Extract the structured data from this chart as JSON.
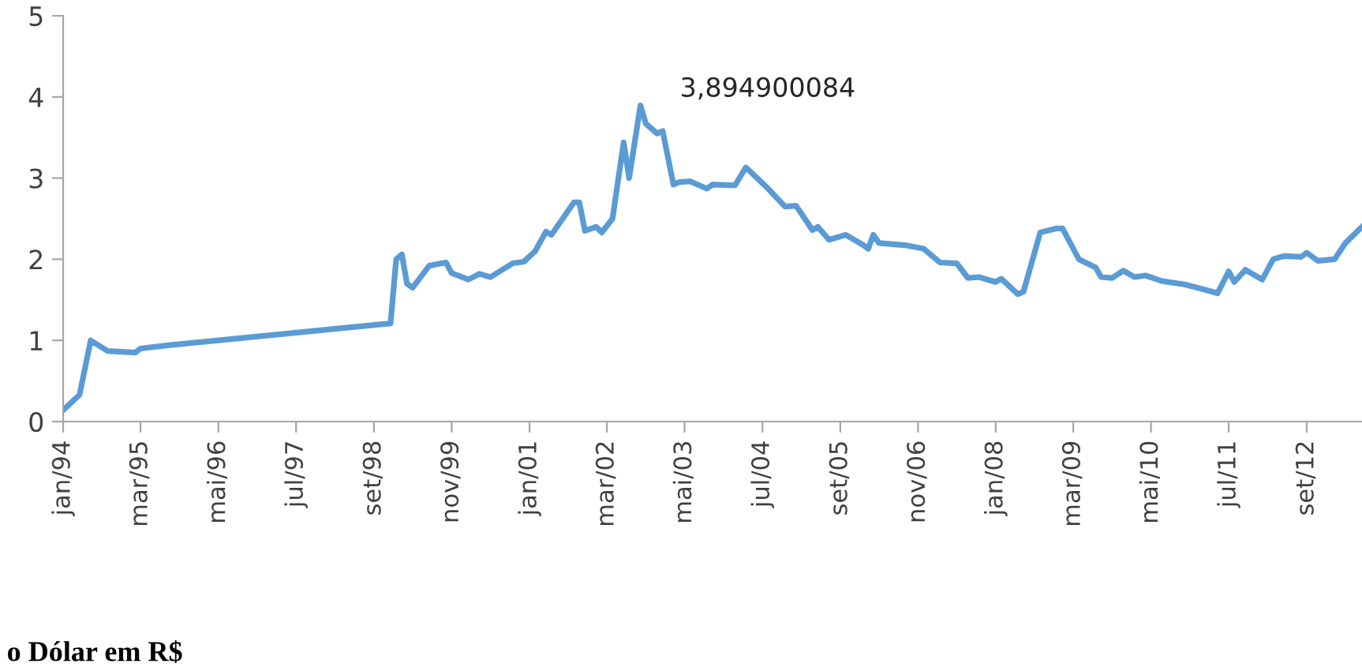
{
  "chart_data": {
    "type": "line",
    "x": [
      "1994-01",
      "1994-04",
      "1994-06",
      "1994-09",
      "1995-02",
      "1995-03",
      "1995-08",
      "1998-12",
      "1999-01",
      "1999-02",
      "1999-03",
      "1999-04",
      "1999-07",
      "1999-10",
      "1999-11",
      "2000-02",
      "2000-04",
      "2000-06",
      "2000-10",
      "2000-12",
      "2001-02",
      "2001-04",
      "2001-05",
      "2001-09",
      "2001-10",
      "2001-11",
      "2002-01",
      "2002-02",
      "2002-04",
      "2002-06",
      "2002-07",
      "2002-09",
      "2002-10",
      "2002-12",
      "2003-01",
      "2003-03",
      "2003-04",
      "2003-06",
      "2003-09",
      "2003-10",
      "2004-02",
      "2004-04",
      "2004-08",
      "2004-11",
      "2005-01",
      "2005-04",
      "2005-05",
      "2005-07",
      "2005-10",
      "2006-01",
      "2006-02",
      "2006-03",
      "2006-04",
      "2006-09",
      "2006-12",
      "2007-03",
      "2007-06",
      "2007-08",
      "2007-10",
      "2008-01",
      "2008-02",
      "2008-05",
      "2008-06",
      "2008-09",
      "2008-12",
      "2009-01",
      "2009-04",
      "2009-07",
      "2009-08",
      "2009-10",
      "2009-12",
      "2010-02",
      "2010-04",
      "2010-07",
      "2010-11",
      "2011-03",
      "2011-05",
      "2011-07",
      "2011-08",
      "2011-10",
      "2012-01",
      "2012-03",
      "2012-05",
      "2012-08",
      "2012-09",
      "2012-11",
      "2013-02",
      "2013-04",
      "2013-07"
    ],
    "series": [
      {
        "color": "#5b9bd5",
        "values": [
          0.14,
          0.33,
          1.0,
          0.87,
          0.85,
          0.9,
          0.94,
          1.21,
          2.0,
          2.06,
          1.7,
          1.65,
          1.92,
          1.96,
          1.83,
          1.75,
          1.82,
          1.78,
          1.95,
          1.97,
          2.1,
          2.34,
          2.3,
          2.7,
          2.7,
          2.35,
          2.4,
          2.33,
          2.5,
          3.44,
          3.0,
          3.894900084,
          3.67,
          3.55,
          3.58,
          2.92,
          2.95,
          2.96,
          2.87,
          2.92,
          2.91,
          3.13,
          2.87,
          2.65,
          2.66,
          2.36,
          2.4,
          2.24,
          2.3,
          2.18,
          2.13,
          2.3,
          2.2,
          2.17,
          2.13,
          1.96,
          1.95,
          1.77,
          1.78,
          1.72,
          1.76,
          1.57,
          1.6,
          2.33,
          2.38,
          2.38,
          2.0,
          1.9,
          1.78,
          1.77,
          1.86,
          1.78,
          1.8,
          1.73,
          1.69,
          1.62,
          1.58,
          1.85,
          1.72,
          1.87,
          1.75,
          2.0,
          2.04,
          2.03,
          2.08,
          1.98,
          2.0,
          2.2,
          2.4
        ]
      }
    ],
    "xlim": [
      "1994-01",
      "2013-07"
    ],
    "xticks": [
      {
        "value": "1994-01",
        "label": "jan/94"
      },
      {
        "value": "1995-03",
        "label": "mar/95"
      },
      {
        "value": "1996-05",
        "label": "mai/96"
      },
      {
        "value": "1997-07",
        "label": "jul/97"
      },
      {
        "value": "1998-09",
        "label": "set/98"
      },
      {
        "value": "1999-11",
        "label": "nov/99"
      },
      {
        "value": "2001-01",
        "label": "jan/01"
      },
      {
        "value": "2002-03",
        "label": "mar/02"
      },
      {
        "value": "2003-05",
        "label": "mai/03"
      },
      {
        "value": "2004-07",
        "label": "jul/04"
      },
      {
        "value": "2005-09",
        "label": "set/05"
      },
      {
        "value": "2006-11",
        "label": "nov/06"
      },
      {
        "value": "2008-01",
        "label": "jan/08"
      },
      {
        "value": "2009-03",
        "label": "mar/09"
      },
      {
        "value": "2010-05",
        "label": "mai/10"
      },
      {
        "value": "2011-07",
        "label": "jul/11"
      },
      {
        "value": "2012-09",
        "label": "set/12"
      }
    ],
    "ylim": [
      0,
      5
    ],
    "yticks": [
      0,
      1,
      2,
      3,
      4,
      5
    ],
    "grid": false,
    "legend": false,
    "marker": "none",
    "line_style": "solid",
    "annotations": [
      {
        "text": "3,894900084",
        "x": "2002-09",
        "y": 3.894900084
      },
      "o Dólar em R$"
    ]
  }
}
